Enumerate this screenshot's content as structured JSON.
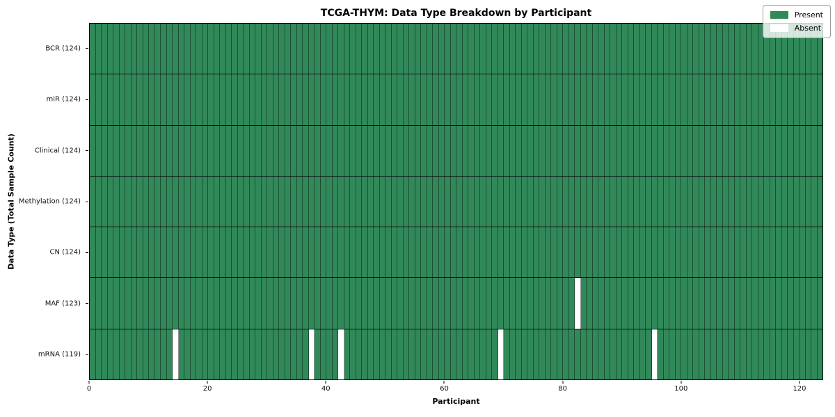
{
  "chart_data": {
    "type": "heatmap",
    "title": "TCGA-THYM: Data Type Breakdown by Participant",
    "xlabel": "Participant",
    "ylabel": "Data Type (Total Sample Count)",
    "n_participants": 124,
    "x_range": [
      0,
      124
    ],
    "x_ticks": [
      0,
      20,
      40,
      60,
      80,
      100,
      120
    ],
    "grid": false,
    "legend_position": "upper-right",
    "colors": {
      "present": "#31895a",
      "absent": "#ffffff"
    },
    "legend": [
      {
        "label": "Present",
        "color": "#31895a"
      },
      {
        "label": "Absent",
        "color": "#ffffff"
      }
    ],
    "rows": [
      {
        "name": "BCR",
        "label": "BCR (124)",
        "total_samples": 124,
        "absent_participants": []
      },
      {
        "name": "miR",
        "label": "miR (124)",
        "total_samples": 124,
        "absent_participants": []
      },
      {
        "name": "Clinical",
        "label": "Clinical (124)",
        "total_samples": 124,
        "absent_participants": []
      },
      {
        "name": "Methylation",
        "label": "Methylation (124)",
        "total_samples": 124,
        "absent_participants": []
      },
      {
        "name": "CN",
        "label": "CN (124)",
        "total_samples": 124,
        "absent_participants": []
      },
      {
        "name": "MAF",
        "label": "MAF (123)",
        "total_samples": 123,
        "absent_participants": [
          82
        ]
      },
      {
        "name": "mRNA",
        "label": "mRNA (119)",
        "total_samples": 119,
        "absent_participants": [
          14,
          37,
          42,
          69,
          95
        ]
      }
    ]
  }
}
